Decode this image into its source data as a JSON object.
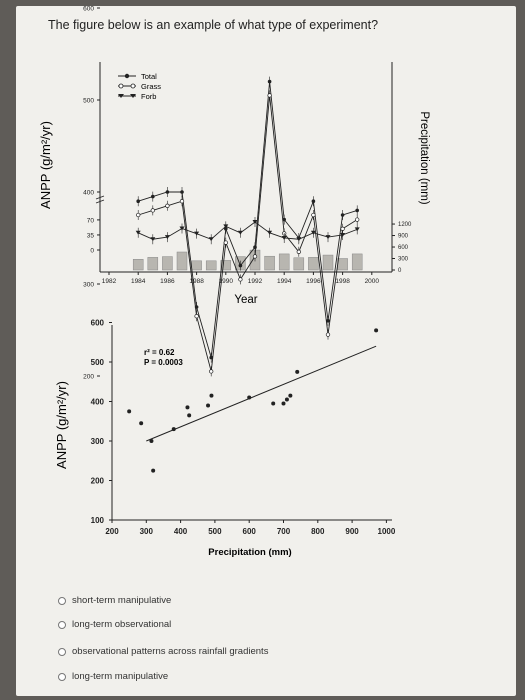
{
  "question": "The figure below is an example of what type of experiment?",
  "options": [
    "short-term manipulative",
    "long-term observational",
    "observational patterns across rainfall gradients",
    "long-term manipulative"
  ],
  "colors": {
    "paper": "#f1f0ec",
    "bar": "#b8b6b0",
    "ink": "#222222"
  },
  "chart_data": [
    {
      "type": "line",
      "xlabel": "Year",
      "ylabel": "ANPP (g/m²/yr)",
      "ylabel_right": "Precipitation (mm)",
      "x_ticks": [
        "1982",
        "1984",
        "1986",
        "1988",
        "1990",
        "1992",
        "1994",
        "1996",
        "1998",
        "2000"
      ],
      "y_ticks_upper": [
        "600",
        "500",
        "400",
        "300",
        "200"
      ],
      "y_ticks_lower": [
        "70",
        "35",
        "0"
      ],
      "right_ticks": [
        "1200",
        "900",
        "600",
        "300",
        "0"
      ],
      "legend": [
        "Total",
        "Grass",
        "Forb"
      ],
      "years": [
        1984,
        1985,
        1986,
        1987,
        1988,
        1989,
        1990,
        1991,
        1992,
        1993,
        1994,
        1995,
        1996,
        1997,
        1998,
        1999
      ],
      "series": [
        {
          "name": "Total",
          "values": [
            390,
            395,
            400,
            400,
            275,
            220,
            360,
            320,
            340,
            520,
            370,
            350,
            390,
            260,
            375,
            380
          ]
        },
        {
          "name": "Grass",
          "values": [
            375,
            380,
            385,
            390,
            265,
            205,
            345,
            305,
            330,
            505,
            355,
            335,
            375,
            245,
            360,
            370
          ]
        },
        {
          "name": "Forb",
          "values": [
            40,
            25,
            30,
            50,
            38,
            25,
            55,
            40,
            65,
            40,
            28,
            25,
            40,
            30,
            35,
            48
          ]
        }
      ],
      "precipitation": [
        280,
        330,
        350,
        470,
        240,
        240,
        250,
        350,
        520,
        360,
        420,
        320,
        330,
        390,
        300,
        420
      ]
    },
    {
      "type": "scatter",
      "xlabel": "Precipitation (mm)",
      "ylabel": "ANPP (g/m²/yr)",
      "annotation_r2": "r² = 0.62",
      "annotation_p": "P = 0.0003",
      "x_ticks": [
        "200",
        "300",
        "400",
        "500",
        "600",
        "700",
        "800",
        "900",
        "1000"
      ],
      "y_ticks": [
        "600",
        "500",
        "400",
        "300",
        "200",
        "100"
      ],
      "xlim": [
        200,
        1000
      ],
      "ylim": [
        100,
        600
      ],
      "points": [
        [
          250,
          375
        ],
        [
          285,
          345
        ],
        [
          315,
          300
        ],
        [
          320,
          225
        ],
        [
          380,
          330
        ],
        [
          420,
          385
        ],
        [
          425,
          365
        ],
        [
          480,
          390
        ],
        [
          490,
          415
        ],
        [
          600,
          410
        ],
        [
          670,
          395
        ],
        [
          700,
          395
        ],
        [
          710,
          405
        ],
        [
          720,
          415
        ],
        [
          740,
          475
        ],
        [
          970,
          580
        ]
      ],
      "trend": [
        [
          300,
          300
        ],
        [
          970,
          540
        ]
      ]
    }
  ]
}
